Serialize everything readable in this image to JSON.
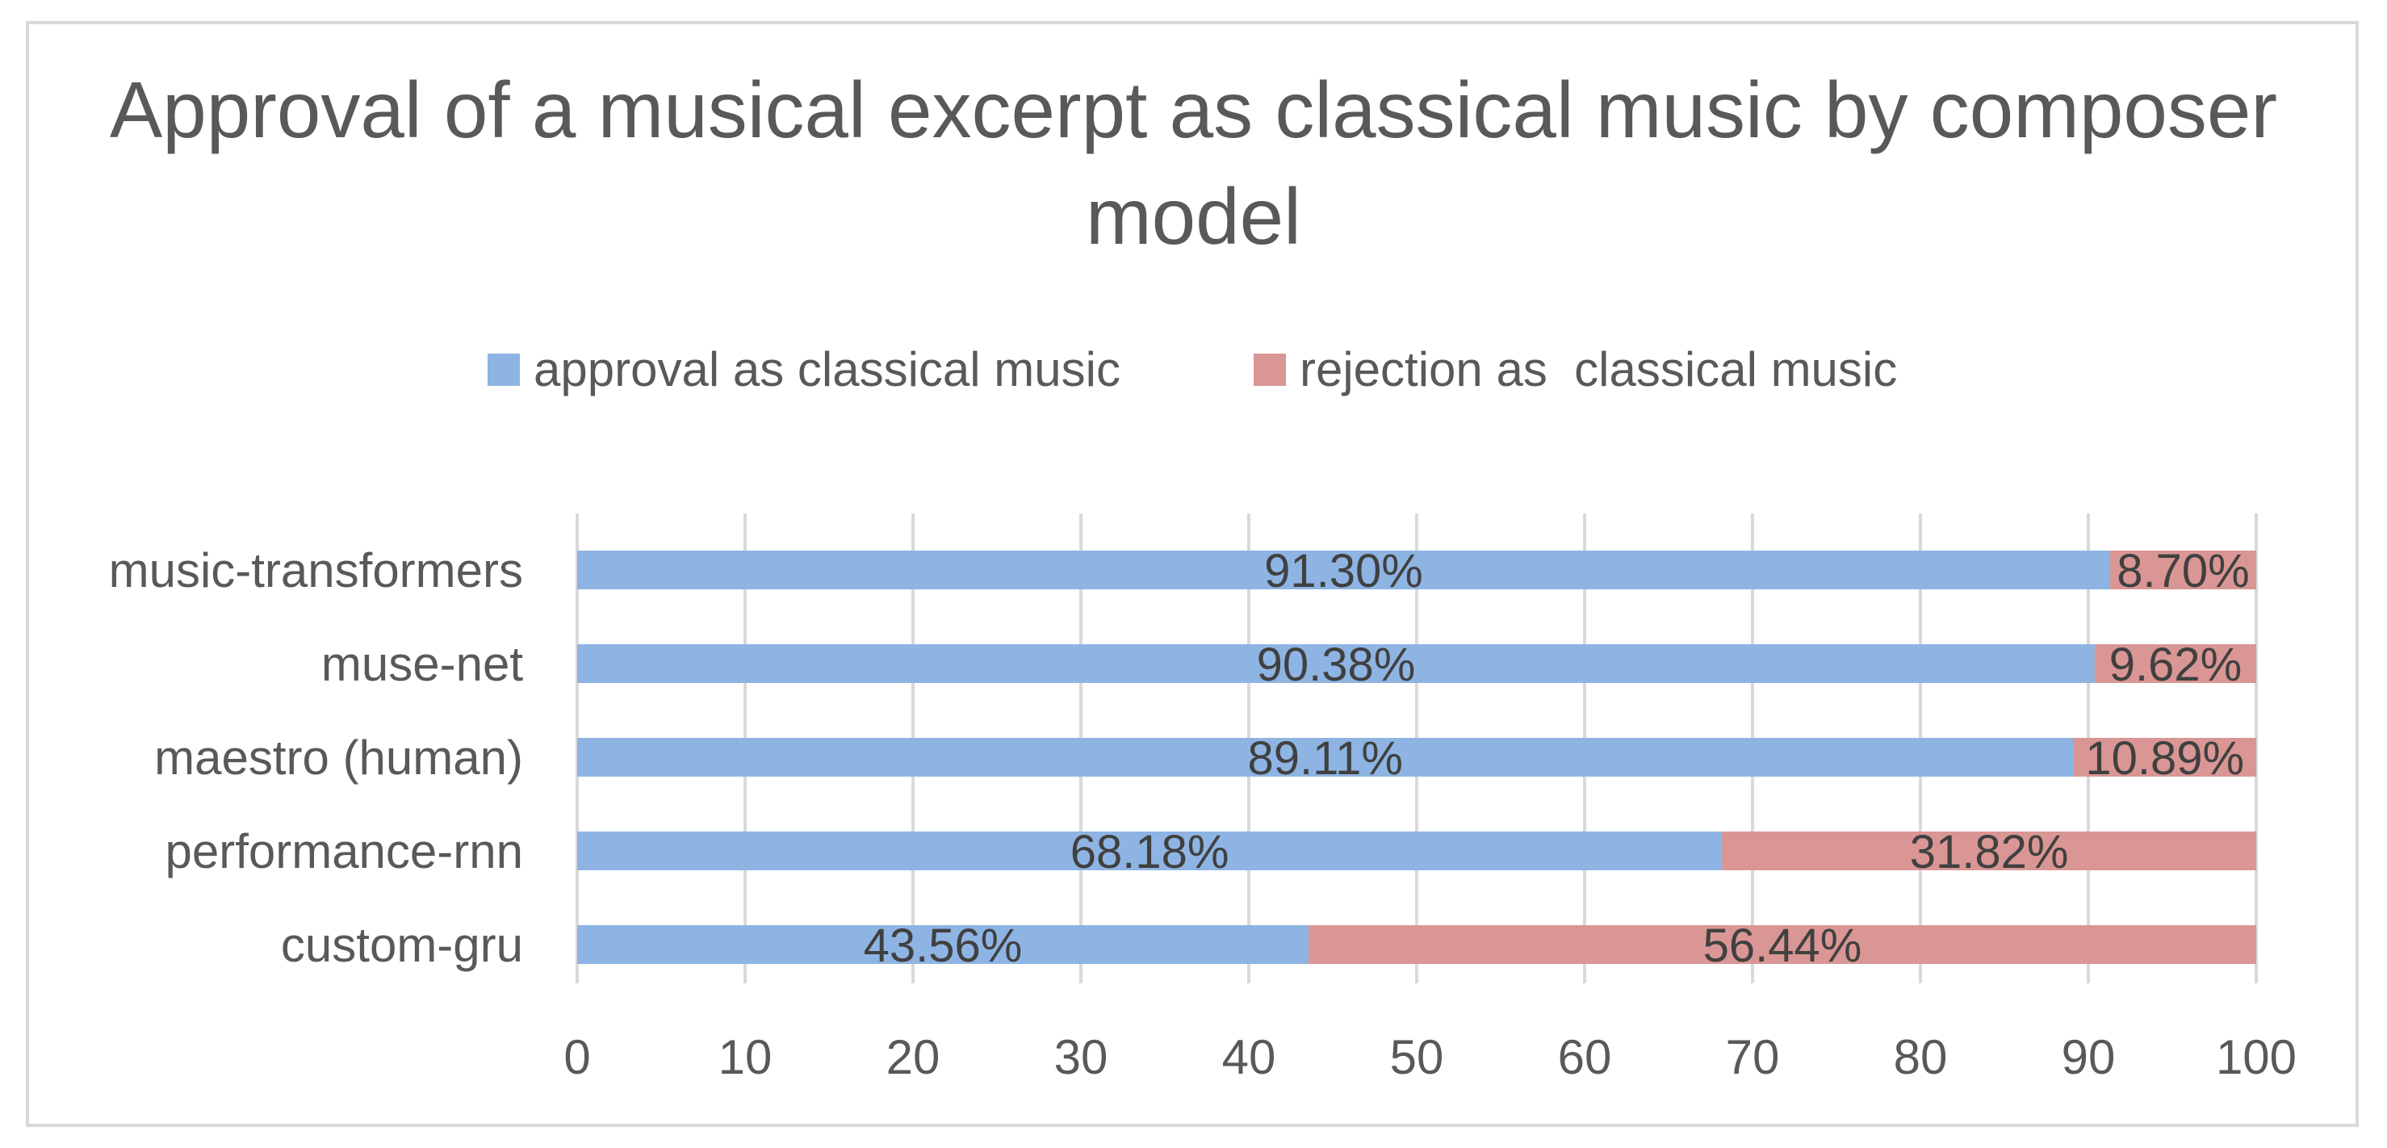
{
  "chart_data": {
    "type": "bar",
    "orientation": "horizontal",
    "stacked": true,
    "title": "Approval of a musical excerpt as classical music by composer model",
    "categories": [
      "custom-gru",
      "performance-rnn",
      "maestro (human)",
      "muse-net",
      "music-transformers"
    ],
    "series": [
      {
        "name": "approval as classical music",
        "color": "#8eb4e3",
        "values": [
          43.56,
          68.18,
          89.11,
          90.38,
          91.3
        ],
        "labels": [
          "43.56%",
          "68.18%",
          "89.11%",
          "90.38%",
          "91.30%"
        ]
      },
      {
        "name": "rejection as  classical music",
        "color": "#d99694",
        "values": [
          56.44,
          31.82,
          10.89,
          9.62,
          8.7
        ],
        "labels": [
          "56.44%",
          "31.82%",
          "10.89%",
          "9.62%",
          "8.70%"
        ]
      }
    ],
    "xlim": [
      0,
      100
    ],
    "xticks": [
      "0",
      "10",
      "20",
      "30",
      "40",
      "50",
      "60",
      "70",
      "80",
      "90",
      "100"
    ],
    "xlabel": "",
    "ylabel": "",
    "grid": true,
    "legend_position": "top-center"
  }
}
